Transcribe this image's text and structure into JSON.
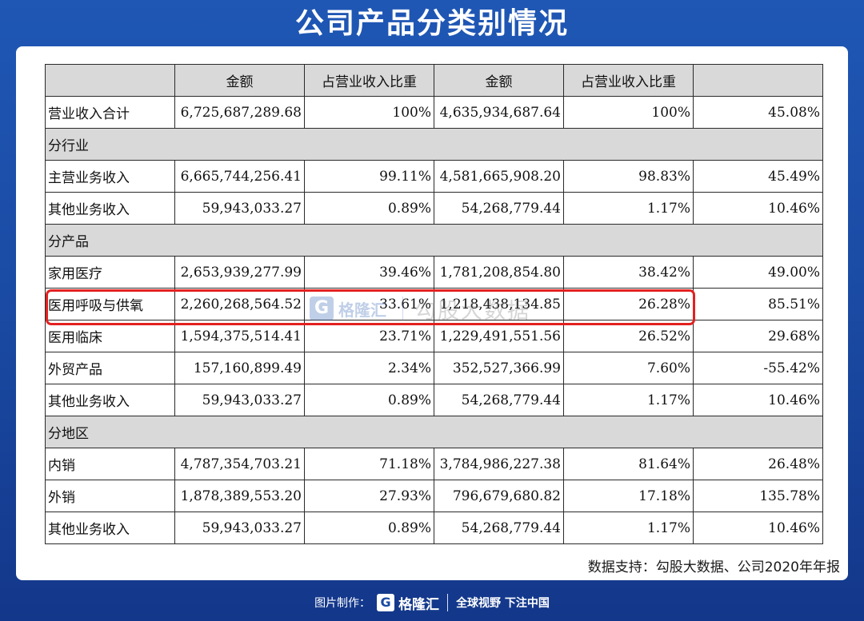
{
  "title": "公司产品分类别情况",
  "table": {
    "header": [
      "",
      "金额",
      "占营业收入比重",
      "金额",
      "占营业收入比重",
      ""
    ],
    "rows": [
      {
        "type": "data",
        "cells": [
          "营业收入合计",
          "6,725,687,289.68",
          "100%",
          "4,635,934,687.64",
          "100%",
          "45.08%"
        ]
      },
      {
        "type": "section",
        "label": "分行业"
      },
      {
        "type": "data",
        "cells": [
          "主营业务收入",
          "6,665,744,256.41",
          "99.11%",
          "4,581,665,908.20",
          "98.83%",
          "45.49%"
        ]
      },
      {
        "type": "data",
        "cells": [
          "其他业务收入",
          "59,943,033.27",
          "0.89%",
          "54,268,779.44",
          "1.17%",
          "10.46%"
        ]
      },
      {
        "type": "section",
        "label": "分产品"
      },
      {
        "type": "data",
        "cells": [
          "家用医疗",
          "2,653,939,277.99",
          "39.46%",
          "1,781,208,854.80",
          "38.42%",
          "49.00%"
        ]
      },
      {
        "type": "data",
        "highlight": true,
        "cells": [
          "医用呼吸与供氧",
          "2,260,268,564.52",
          "33.61%",
          "1,218,438,134.85",
          "26.28%",
          "85.51%"
        ]
      },
      {
        "type": "data",
        "cells": [
          "医用临床",
          "1,594,375,514.41",
          "23.71%",
          "1,229,491,551.56",
          "26.52%",
          "29.68%"
        ]
      },
      {
        "type": "data",
        "cells": [
          "外贸产品",
          "157,160,899.49",
          "2.34%",
          "352,527,366.99",
          "7.60%",
          "-55.42%"
        ]
      },
      {
        "type": "data",
        "cells": [
          "其他业务收入",
          "59,943,033.27",
          "0.89%",
          "54,268,779.44",
          "1.17%",
          "10.46%"
        ]
      },
      {
        "type": "section",
        "label": "分地区"
      },
      {
        "type": "data",
        "cells": [
          "内销",
          "4,787,354,703.21",
          "71.18%",
          "3,784,986,227.38",
          "81.64%",
          "26.48%"
        ]
      },
      {
        "type": "data",
        "cells": [
          "外销",
          "1,878,389,553.20",
          "27.93%",
          "796,679,680.82",
          "17.18%",
          "135.78%"
        ]
      },
      {
        "type": "data",
        "cells": [
          "其他业务收入",
          "59,943,033.27",
          "0.89%",
          "54,268,779.44",
          "1.17%",
          "10.46%"
        ]
      }
    ]
  },
  "watermark": {
    "logo_letter": "G",
    "logo_name": "格隆汇",
    "text": "勾股大数据"
  },
  "source": "数据支持：勾股大数据、公司2020年年报",
  "footer": {
    "prefix": "图片制作：",
    "logo_letter": "G",
    "logo_name": "格隆汇",
    "slogan": "全球视野 下注中国"
  },
  "colors": {
    "background": "#1a4aa3",
    "card": "#ffffff",
    "header_fill": "#d9d9d9",
    "highlight_border": "#e32020"
  }
}
